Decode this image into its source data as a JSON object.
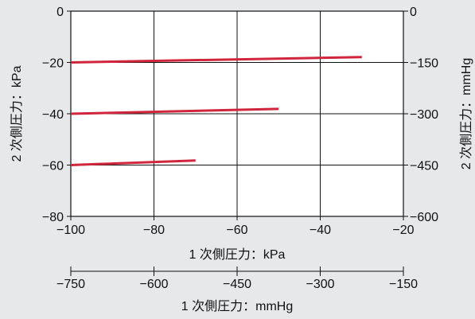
{
  "chart_data": {
    "type": "line",
    "title": "",
    "xlabel": "1 次側圧力：kPa",
    "ylabel": "2 次側圧力：kPa",
    "xlim": [
      -100,
      -20
    ],
    "ylim": [
      -80,
      0
    ],
    "x_ticks": [
      "−100",
      "−80",
      "−60",
      "−40",
      "−20"
    ],
    "y_ticks": [
      "0",
      "−20",
      "−40",
      "−60",
      "−80"
    ],
    "secondary_y": {
      "label": "2 次側圧力：mmHg",
      "ticks": [
        "0",
        "−150",
        "−300",
        "−450",
        "−600"
      ]
    },
    "secondary_x": {
      "label": "1 次側圧力：mmHg",
      "ticks": [
        "−750",
        "−600",
        "−450",
        "−300",
        "−150"
      ]
    },
    "grid": true,
    "series": [
      {
        "x": [
          -100,
          -30
        ],
        "y": [
          -20,
          -17.9
        ]
      },
      {
        "x": [
          -100,
          -50
        ],
        "y": [
          -40,
          -38.1
        ]
      },
      {
        "x": [
          -100,
          -70
        ],
        "y": [
          -60,
          -58.2
        ]
      }
    ],
    "colors": {
      "line": "#d0263c",
      "grid": "#111111",
      "plot_bg": "#ffffff",
      "page_bg": "#e6e8ea"
    }
  }
}
